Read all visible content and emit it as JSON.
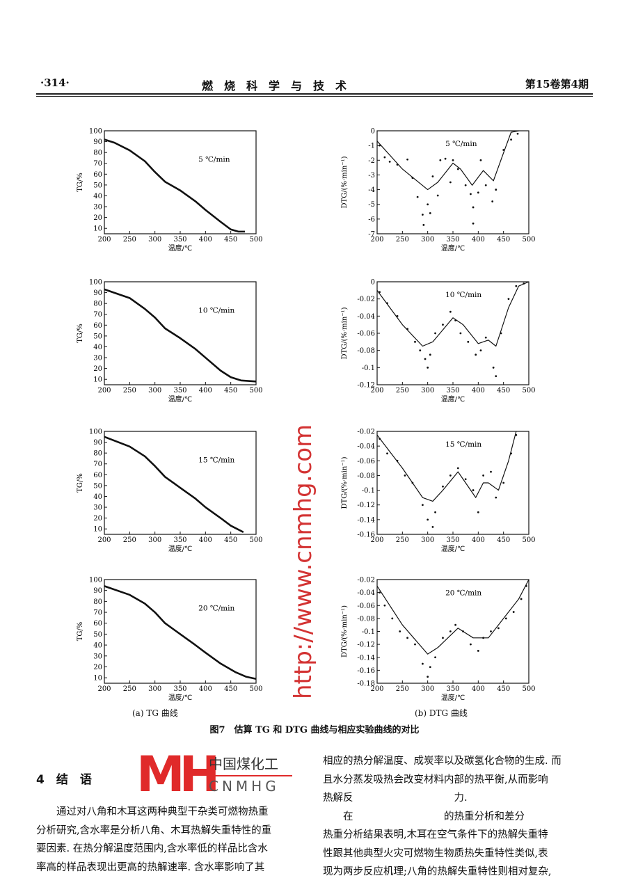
{
  "header": {
    "page": "·314·",
    "journal": "燃　烧　科　学　与　技　术",
    "issue": "第15卷第4期"
  },
  "chart_data": [
    {
      "type": "line",
      "panel": "TG",
      "label": "5 ℃/min",
      "xlabel": "温度/℃",
      "ylabel": "TG/%",
      "xlim": [
        200,
        500
      ],
      "ylim": [
        5,
        100
      ],
      "xticks": [
        200,
        250,
        300,
        350,
        400,
        450,
        500
      ],
      "yticks": [
        10,
        20,
        30,
        40,
        50,
        60,
        70,
        80,
        90,
        100
      ],
      "fit": [
        [
          200,
          92
        ],
        [
          220,
          89
        ],
        [
          250,
          82
        ],
        [
          280,
          72
        ],
        [
          300,
          62
        ],
        [
          320,
          53
        ],
        [
          350,
          45
        ],
        [
          380,
          35
        ],
        [
          400,
          27
        ],
        [
          430,
          16
        ],
        [
          450,
          9
        ],
        [
          465,
          7
        ],
        [
          478,
          7
        ]
      ]
    },
    {
      "type": "line",
      "panel": "TG",
      "label": "10 ℃/min",
      "xlabel": "温度/℃",
      "ylabel": "TG/%",
      "xlim": [
        200,
        500
      ],
      "ylim": [
        5,
        100
      ],
      "xticks": [
        200,
        250,
        300,
        350,
        400,
        450,
        500
      ],
      "yticks": [
        10,
        20,
        30,
        40,
        50,
        60,
        70,
        80,
        90,
        100
      ],
      "fit": [
        [
          200,
          93
        ],
        [
          250,
          85
        ],
        [
          280,
          75
        ],
        [
          300,
          67
        ],
        [
          320,
          57
        ],
        [
          350,
          48
        ],
        [
          380,
          38
        ],
        [
          400,
          30
        ],
        [
          430,
          18
        ],
        [
          450,
          12
        ],
        [
          470,
          9
        ],
        [
          500,
          8
        ]
      ]
    },
    {
      "type": "line",
      "panel": "TG",
      "label": "15 ℃/min",
      "xlabel": "温度/℃",
      "ylabel": "TG/%",
      "xlim": [
        200,
        500
      ],
      "ylim": [
        5,
        100
      ],
      "xticks": [
        200,
        250,
        300,
        350,
        400,
        450,
        500
      ],
      "yticks": [
        10,
        20,
        30,
        40,
        50,
        60,
        70,
        80,
        90,
        100
      ],
      "fit": [
        [
          200,
          95
        ],
        [
          250,
          86
        ],
        [
          280,
          77
        ],
        [
          300,
          68
        ],
        [
          320,
          58
        ],
        [
          350,
          48
        ],
        [
          380,
          38
        ],
        [
          400,
          30
        ],
        [
          430,
          20
        ],
        [
          450,
          13
        ],
        [
          475,
          7
        ]
      ]
    },
    {
      "type": "line",
      "panel": "TG",
      "label": "20 ℃/min",
      "xlabel": "温度/℃",
      "ylabel": "TG/%",
      "xlim": [
        200,
        500
      ],
      "ylim": [
        5,
        100
      ],
      "xticks": [
        200,
        250,
        300,
        350,
        400,
        450,
        500
      ],
      "yticks": [
        10,
        20,
        30,
        40,
        50,
        60,
        70,
        80,
        90,
        100
      ],
      "fit": [
        [
          200,
          94
        ],
        [
          250,
          86
        ],
        [
          280,
          78
        ],
        [
          300,
          70
        ],
        [
          320,
          60
        ],
        [
          350,
          50
        ],
        [
          380,
          40
        ],
        [
          400,
          33
        ],
        [
          430,
          23
        ],
        [
          460,
          15
        ],
        [
          480,
          11
        ],
        [
          500,
          9
        ]
      ]
    },
    {
      "type": "scatter",
      "panel": "DTG",
      "label": "5 ℃/min",
      "xlabel": "温度/℃",
      "ylabel": "DTG/(%·min⁻¹)",
      "xlim": [
        200,
        500
      ],
      "ylim": [
        -7,
        0
      ],
      "xticks": [
        200,
        250,
        300,
        350,
        400,
        450,
        500
      ],
      "yticks": [
        0,
        -1,
        -2,
        -3,
        -4,
        -5,
        -6,
        -7
      ],
      "fit": [
        [
          200,
          -0.7
        ],
        [
          250,
          -2.6
        ],
        [
          300,
          -4.0
        ],
        [
          320,
          -3.5
        ],
        [
          350,
          -2.2
        ],
        [
          365,
          -2.6
        ],
        [
          388,
          -3.7
        ],
        [
          410,
          -2.7
        ],
        [
          430,
          -3.4
        ],
        [
          450,
          -1.5
        ],
        [
          465,
          -0.1
        ],
        [
          480,
          0
        ]
      ],
      "points": [
        [
          205,
          -1
        ],
        [
          215,
          -1.8
        ],
        [
          225,
          -2.1
        ],
        [
          240,
          -2.3
        ],
        [
          260,
          -1.95
        ],
        [
          270,
          -3.2
        ],
        [
          280,
          -4.5
        ],
        [
          290,
          -5.7
        ],
        [
          292,
          -6.4
        ],
        [
          300,
          -5
        ],
        [
          305,
          -5.6
        ],
        [
          310,
          -3.1
        ],
        [
          320,
          -4.4
        ],
        [
          325,
          -2
        ],
        [
          335,
          -1.9
        ],
        [
          345,
          -3.5
        ],
        [
          350,
          -2
        ],
        [
          360,
          -2.6
        ],
        [
          375,
          -3.7
        ],
        [
          385,
          -4.3
        ],
        [
          390,
          -5.2
        ],
        [
          390,
          -6.3
        ],
        [
          400,
          -4.2
        ],
        [
          405,
          -2
        ],
        [
          415,
          -3.7
        ],
        [
          428,
          -4.8
        ],
        [
          435,
          -4
        ],
        [
          450,
          -1.3
        ],
        [
          465,
          -0.6
        ],
        [
          478,
          -0.2
        ]
      ]
    },
    {
      "type": "scatter",
      "panel": "DTG",
      "label": "10 ℃/min",
      "xlabel": "温度/℃",
      "ylabel": "DTG/(%·min⁻¹)",
      "xlim": [
        200,
        500
      ],
      "ylim": [
        -0.12,
        0
      ],
      "xticks": [
        200,
        250,
        300,
        350,
        400,
        450,
        500
      ],
      "yticks": [
        0,
        -0.02,
        -0.04,
        -0.06,
        -0.08,
        -0.1,
        -0.12
      ],
      "fit": [
        [
          200,
          -0.01
        ],
        [
          250,
          -0.05
        ],
        [
          290,
          -0.075
        ],
        [
          310,
          -0.07
        ],
        [
          350,
          -0.042
        ],
        [
          370,
          -0.05
        ],
        [
          400,
          -0.072
        ],
        [
          420,
          -0.068
        ],
        [
          435,
          -0.075
        ],
        [
          460,
          -0.03
        ],
        [
          480,
          -0.005
        ],
        [
          500,
          0
        ]
      ],
      "points": [
        [
          205,
          -0.012
        ],
        [
          220,
          -0.025
        ],
        [
          240,
          -0.04
        ],
        [
          260,
          -0.055
        ],
        [
          275,
          -0.07
        ],
        [
          285,
          -0.08
        ],
        [
          295,
          -0.09
        ],
        [
          300,
          -0.1
        ],
        [
          305,
          -0.085
        ],
        [
          315,
          -0.06
        ],
        [
          330,
          -0.05
        ],
        [
          345,
          -0.035
        ],
        [
          355,
          -0.045
        ],
        [
          365,
          -0.06
        ],
        [
          380,
          -0.07
        ],
        [
          395,
          -0.085
        ],
        [
          405,
          -0.08
        ],
        [
          415,
          -0.065
        ],
        [
          430,
          -0.1
        ],
        [
          435,
          -0.11
        ],
        [
          445,
          -0.06
        ],
        [
          460,
          -0.02
        ],
        [
          475,
          -0.005
        ],
        [
          490,
          -0.002
        ]
      ]
    },
    {
      "type": "scatter",
      "panel": "DTG",
      "label": "15 ℃/min",
      "xlabel": "温度/℃",
      "ylabel": "DTG/(%·min⁻¹)",
      "xlim": [
        200,
        500
      ],
      "ylim": [
        -0.16,
        -0.02
      ],
      "xticks": [
        200,
        250,
        300,
        350,
        400,
        450,
        500
      ],
      "yticks": [
        -0.02,
        -0.04,
        -0.06,
        -0.08,
        -0.1,
        -0.12,
        -0.14,
        -0.16
      ],
      "fit": [
        [
          200,
          -0.025
        ],
        [
          250,
          -0.07
        ],
        [
          290,
          -0.11
        ],
        [
          310,
          -0.115
        ],
        [
          330,
          -0.1
        ],
        [
          360,
          -0.075
        ],
        [
          395,
          -0.11
        ],
        [
          410,
          -0.09
        ],
        [
          420,
          -0.09
        ],
        [
          440,
          -0.1
        ],
        [
          460,
          -0.06
        ],
        [
          475,
          -0.02
        ]
      ],
      "points": [
        [
          205,
          -0.03
        ],
        [
          220,
          -0.05
        ],
        [
          240,
          -0.06
        ],
        [
          255,
          -0.08
        ],
        [
          270,
          -0.09
        ],
        [
          290,
          -0.12
        ],
        [
          300,
          -0.14
        ],
        [
          310,
          -0.15
        ],
        [
          315,
          -0.13
        ],
        [
          330,
          -0.095
        ],
        [
          345,
          -0.08
        ],
        [
          360,
          -0.07
        ],
        [
          375,
          -0.085
        ],
        [
          390,
          -0.1
        ],
        [
          400,
          -0.13
        ],
        [
          410,
          -0.08
        ],
        [
          425,
          -0.075
        ],
        [
          435,
          -0.11
        ],
        [
          450,
          -0.09
        ],
        [
          465,
          -0.05
        ],
        [
          475,
          -0.025
        ]
      ]
    },
    {
      "type": "scatter",
      "panel": "DTG",
      "label": "20 ℃/min",
      "xlabel": "温度/℃",
      "ylabel": "DTG/(%·min⁻¹)",
      "xlim": [
        200,
        500
      ],
      "ylim": [
        -0.18,
        -0.02
      ],
      "xticks": [
        200,
        250,
        300,
        350,
        400,
        450,
        500
      ],
      "yticks": [
        -0.02,
        -0.04,
        -0.06,
        -0.08,
        -0.1,
        -0.12,
        -0.14,
        -0.16,
        -0.18
      ],
      "fit": [
        [
          200,
          -0.03
        ],
        [
          250,
          -0.09
        ],
        [
          300,
          -0.135
        ],
        [
          320,
          -0.125
        ],
        [
          360,
          -0.095
        ],
        [
          390,
          -0.11
        ],
        [
          420,
          -0.11
        ],
        [
          450,
          -0.08
        ],
        [
          480,
          -0.05
        ],
        [
          500,
          -0.02
        ]
      ],
      "points": [
        [
          205,
          -0.04
        ],
        [
          215,
          -0.06
        ],
        [
          230,
          -0.08
        ],
        [
          245,
          -0.1
        ],
        [
          260,
          -0.11
        ],
        [
          275,
          -0.12
        ],
        [
          290,
          -0.15
        ],
        [
          300,
          -0.17
        ],
        [
          305,
          -0.155
        ],
        [
          315,
          -0.14
        ],
        [
          330,
          -0.11
        ],
        [
          345,
          -0.1
        ],
        [
          355,
          -0.09
        ],
        [
          370,
          -0.1
        ],
        [
          385,
          -0.12
        ],
        [
          400,
          -0.13
        ],
        [
          410,
          -0.11
        ],
        [
          425,
          -0.1
        ],
        [
          440,
          -0.095
        ],
        [
          455,
          -0.08
        ],
        [
          470,
          -0.07
        ],
        [
          485,
          -0.05
        ],
        [
          495,
          -0.03
        ]
      ]
    }
  ],
  "captions": {
    "a": "(a) TG 曲线",
    "b": "(b) DTG 曲线",
    "figure": "图7　估算 TG 和 DTG 曲线与相应实验曲线的对比"
  },
  "section": {
    "heading": "4　结　语",
    "left": [
      "　　通过对八角和木耳这两种典型干杂类可燃物热重",
      "分析研究,含水率是分析八角、木耳热解失重特性的重",
      "要因素. 在热分解温度范围内,含水率低的样品比含水",
      "率高的样品表现出更高的热解速率. 含水率影响了其"
    ],
    "right": [
      "相应的热分解温度、成炭率以及碳氢化合物的生成. 而",
      "且水分蒸发吸热会改变材料内部的热平衡,从而影响",
      "热解反　　　　　　　　　　力.",
      "　　在　　　　　　　　　的热重分析和差分",
      "热重分析结果表明,木耳在空气条件下的热解失重特",
      "性跟其他典型火灾可燃物生物质热失重特性类似,表",
      "现为两步反应机理;八角的热解失重特性则相对复杂,"
    ]
  },
  "watermark": "http://www.cnmhg.com",
  "logo": {
    "mark": "MH",
    "cn": "中国煤化工",
    "en": "CNMHG"
  },
  "colors": {
    "ink": "#111111",
    "watermark": "#d33333",
    "logo": "#e02a2a"
  }
}
